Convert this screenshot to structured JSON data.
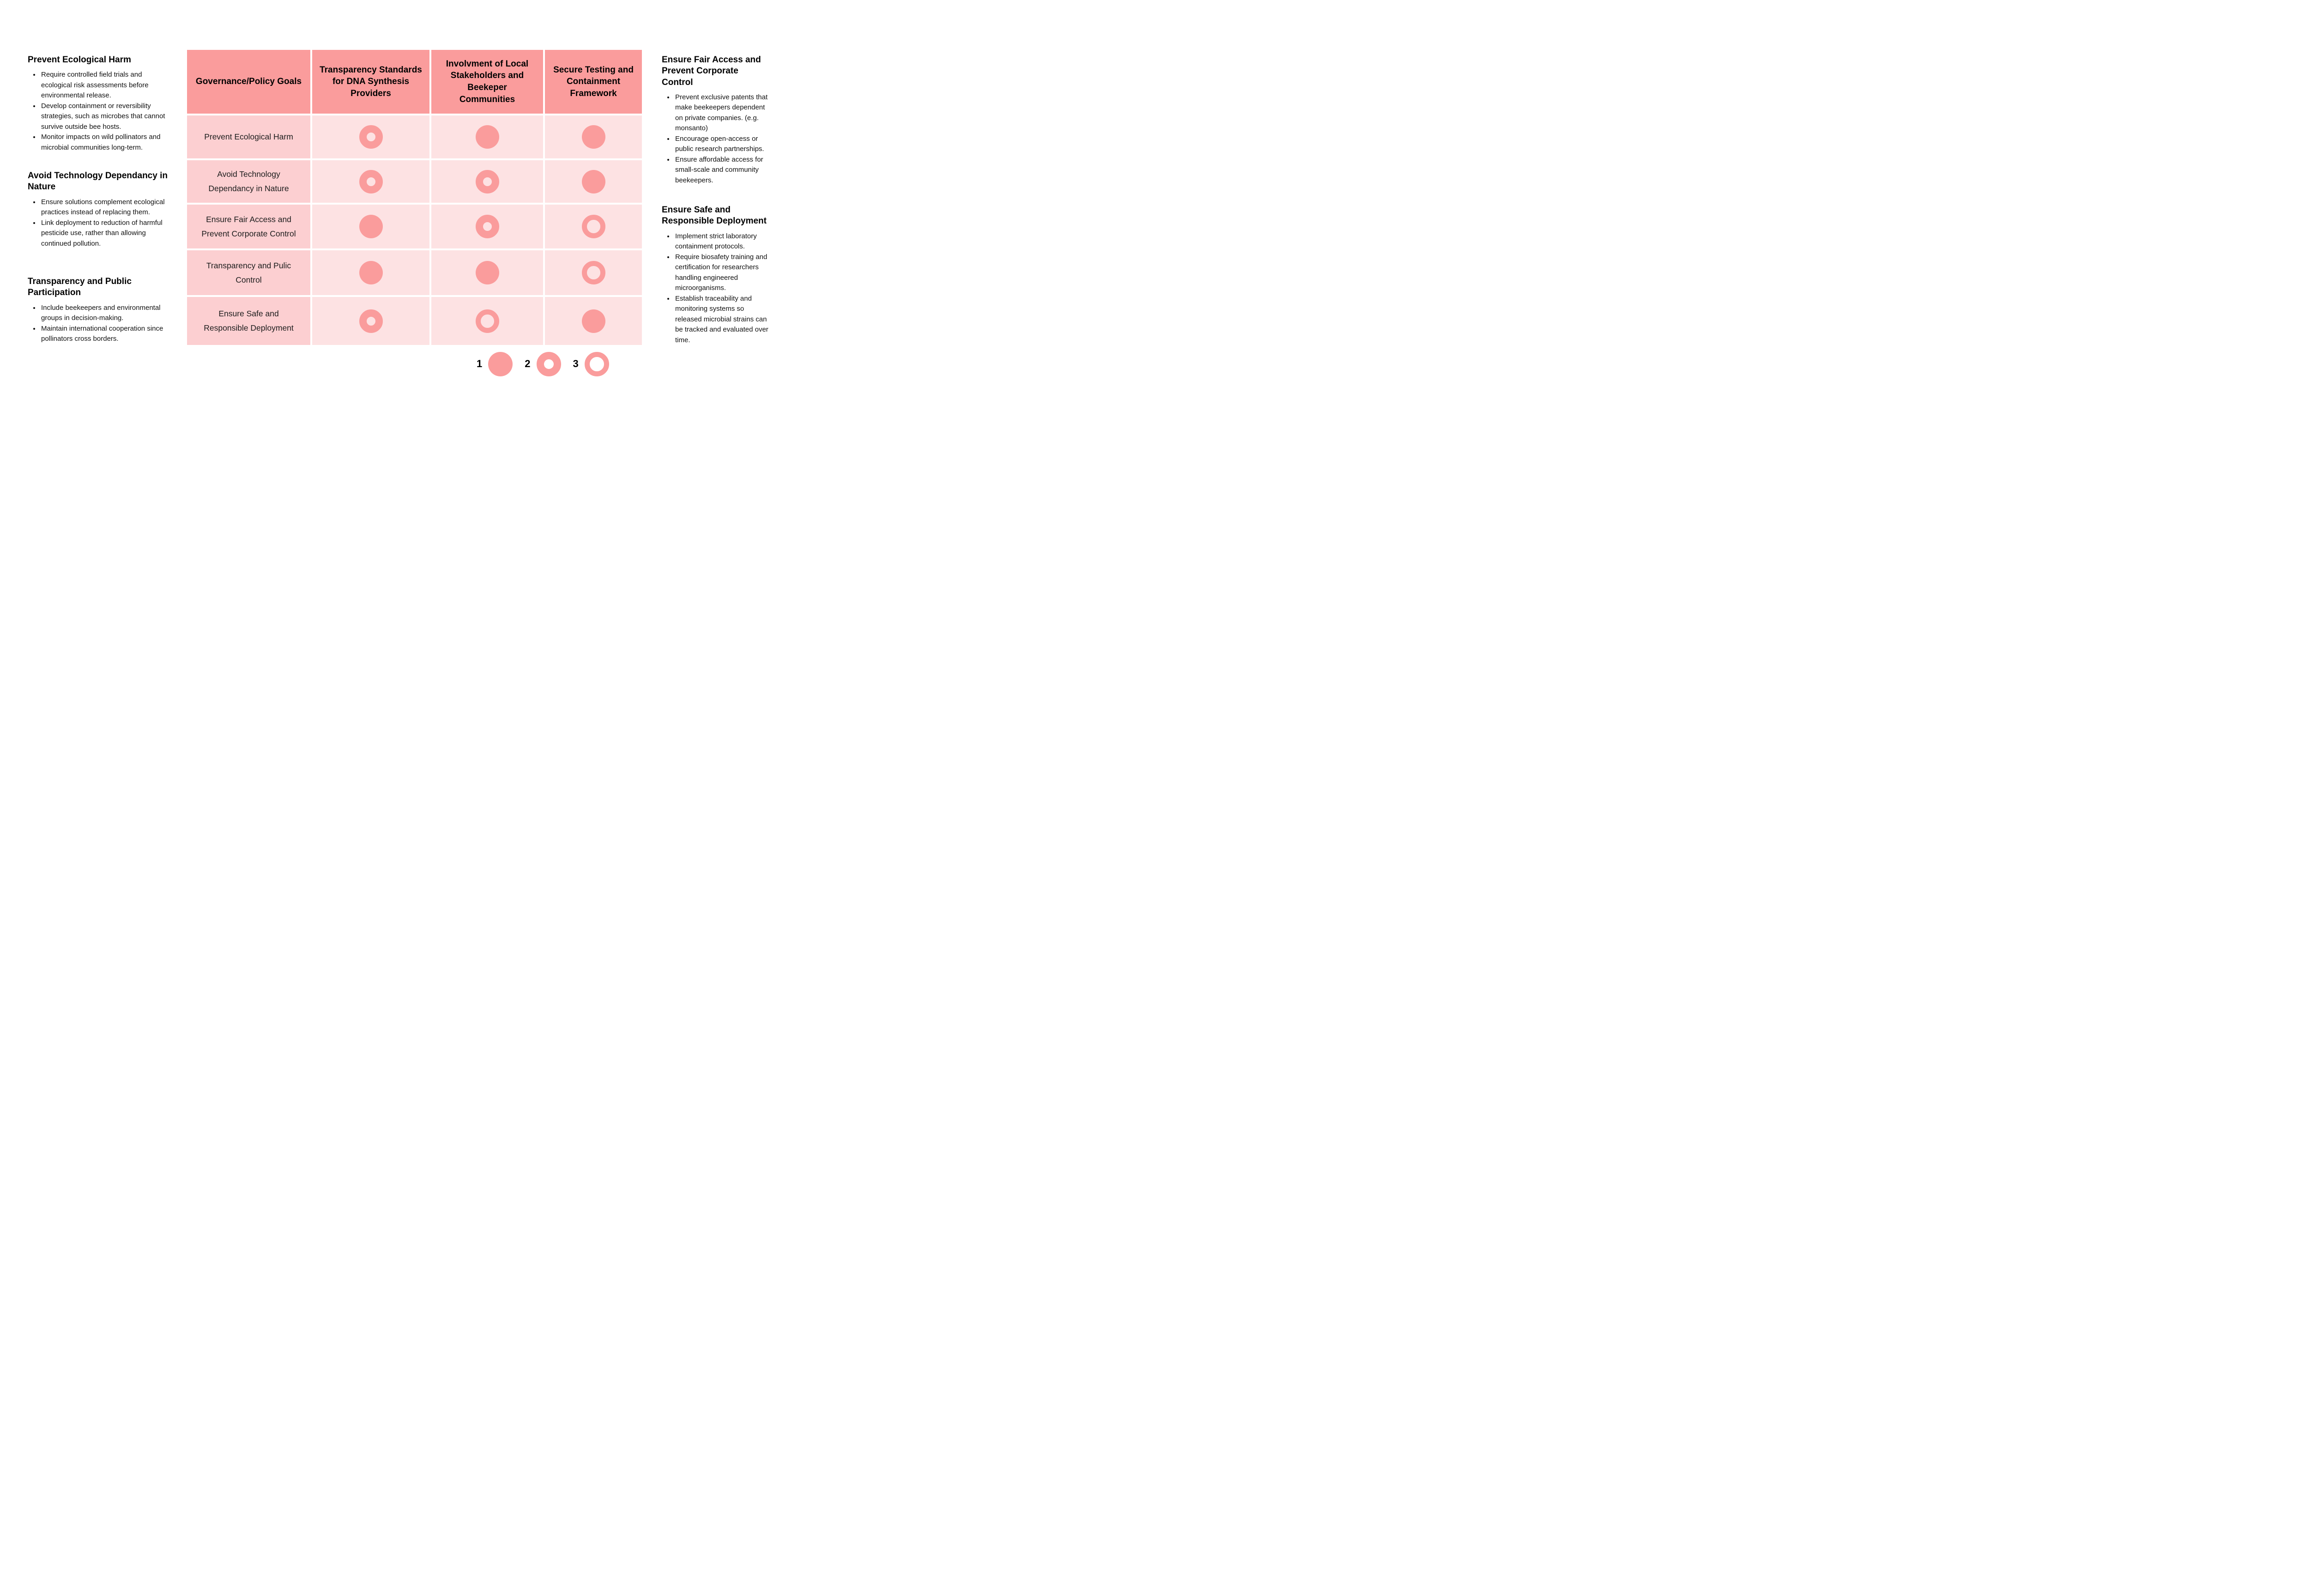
{
  "colors": {
    "salmon": "#fa9c9c",
    "label_cell": "#fccfd1",
    "value_cell": "#fde2e3",
    "page_bg": "#ffffff",
    "text": "#000000"
  },
  "matrix": {
    "columns": [
      "Governance/Policy Goals",
      "Transparency Standards for DNA Synthesis Providers",
      "Involvment of Local Stakeholders and Beekeper Communities",
      "Secure Testing and Containment Framework"
    ],
    "rows": [
      {
        "label": "Prevent Ecological Harm",
        "ratings": [
          2,
          1,
          1
        ]
      },
      {
        "label": "Avoid Technology Dependancy in Nature",
        "ratings": [
          2,
          2,
          1
        ]
      },
      {
        "label": "Ensure Fair Access and Prevent Corporate Control",
        "ratings": [
          1,
          2,
          3
        ]
      },
      {
        "label": "Transparency and Pulic Control",
        "ratings": [
          1,
          1,
          3
        ]
      },
      {
        "label": "Ensure Safe and Responsible Deployment",
        "ratings": [
          2,
          3,
          1
        ]
      }
    ]
  },
  "left_notes": [
    {
      "heading": "Prevent Ecological Harm",
      "bullets": [
        "Require controlled field trials and ecological risk assessments before environmental release.",
        "Develop containment or reversibility strategies, such as microbes that cannot survive outside bee hosts.",
        "Monitor impacts on wild pollinators and microbial communities long-term."
      ]
    },
    {
      "heading": "Avoid Technology Dependancy in Nature",
      "bullets": [
        "Ensure solutions complement ecological practices instead of replacing them.",
        "Link deployment to reduction of harmful pesticide use, rather than allowing continued pollution."
      ]
    },
    {
      "heading": "Transparency and Public Participation",
      "bullets": [
        "Include beekeepers and environmental groups in decision-making.",
        "Maintain international cooperation since pollinators cross borders."
      ]
    }
  ],
  "right_notes": [
    {
      "heading": "Ensure Fair Access and Prevent Corporate Control",
      "bullets": [
        "Prevent exclusive patents that make beekeepers dependent on private companies. (e.g. monsanto)",
        "Encourage open-access or public research partnerships.",
        "Ensure affordable access for small-scale and community beekeepers."
      ]
    },
    {
      "heading": "Ensure Safe and Responsible Deployment",
      "bullets": [
        "Implement strict laboratory containment protocols.",
        "Require biosafety training and certification for researchers handling engineered microorganisms.",
        "Establish traceability and monitoring systems so released microbial strains can be tracked and evaluated over time."
      ]
    }
  ],
  "legend": {
    "items": [
      {
        "number": "1",
        "style": 1
      },
      {
        "number": "2",
        "style": 2
      },
      {
        "number": "3",
        "style": 3
      }
    ]
  }
}
